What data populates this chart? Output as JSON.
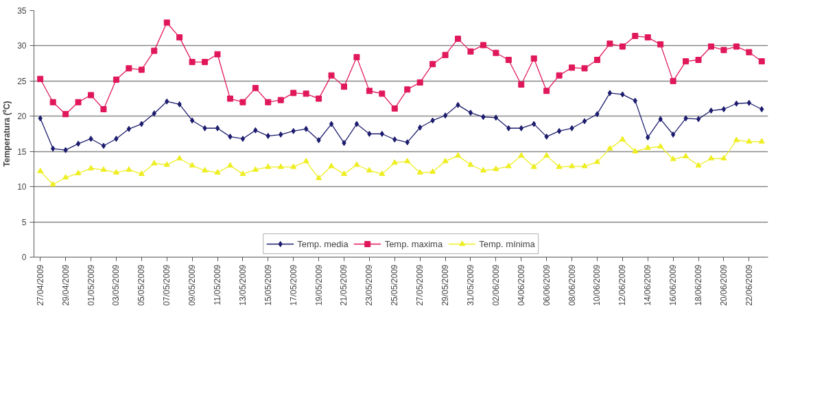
{
  "chart_data": {
    "type": "line",
    "ylabel": "Temperatura (ºC)",
    "categories": [
      "27/04/2009",
      null,
      "29/04/2009",
      null,
      "01/05/2009",
      null,
      "03/05/2009",
      null,
      "05/05/2009",
      null,
      "07/05/2009",
      null,
      "09/05/2009",
      null,
      "11/05/2009",
      null,
      "13/05/2009",
      null,
      "15/05/2009",
      null,
      "17/05/2009",
      null,
      "19/05/2009",
      null,
      "21/05/2009",
      null,
      "23/05/2009",
      null,
      "25/05/2009",
      null,
      "27/05/2009",
      null,
      "29/05/2009",
      null,
      "31/05/2009",
      null,
      "02/06/2009",
      null,
      "04/06/2009",
      null,
      "06/06/2009",
      null,
      "08/06/2009",
      null,
      "10/06/2009",
      null,
      "12/06/2009",
      null,
      "14/06/2009",
      null,
      "16/06/2009",
      null,
      "18/06/2009",
      null,
      "20/06/2009",
      null,
      "22/06/2009",
      null
    ],
    "ylim": [
      0,
      35
    ],
    "yticks": [
      0,
      5,
      10,
      15,
      20,
      25,
      30,
      35
    ],
    "grid": "y",
    "legend": "bottom",
    "line_style": "solid",
    "series": [
      {
        "name": "Temp. media",
        "color": "#1c1c6e",
        "marker": "diamond",
        "values": [
          19.7,
          15.4,
          15.2,
          16.1,
          16.8,
          15.8,
          16.8,
          18.2,
          18.9,
          20.4,
          22.1,
          21.7,
          19.4,
          18.3,
          18.3,
          17.1,
          16.8,
          18,
          17.2,
          17.4,
          17.9,
          18.2,
          16.6,
          18.9,
          16.2,
          18.9,
          17.5,
          17.5,
          16.7,
          16.3,
          18.4,
          19.4,
          20.1,
          21.6,
          20.5,
          19.9,
          19.8,
          18.3,
          18.3,
          18.9,
          17.1,
          17.9,
          18.3,
          19.3,
          20.3,
          23.3,
          23.1,
          22.2,
          17,
          19.6,
          17.4,
          19.7,
          19.6,
          20.8,
          21,
          21.8,
          21.9,
          21
        ]
      },
      {
        "name": "Temp. maxima",
        "color": "#e0185a",
        "marker": "square",
        "values": [
          25.3,
          22,
          20.3,
          22,
          23,
          21,
          25.2,
          26.8,
          26.6,
          29.3,
          33.3,
          31.2,
          27.7,
          27.7,
          28.8,
          22.5,
          22,
          24,
          22,
          22.3,
          23.3,
          23.2,
          22.5,
          25.8,
          24.2,
          28.4,
          23.6,
          23.2,
          21.1,
          23.8,
          24.8,
          27.4,
          28.7,
          31,
          29.2,
          30.1,
          29,
          28,
          24.5,
          28.2,
          23.6,
          25.8,
          26.9,
          26.8,
          28,
          30.3,
          29.9,
          31.4,
          31.2,
          30.2,
          25,
          27.8,
          28,
          29.9,
          29.4,
          29.9,
          29.1,
          27.8
        ]
      },
      {
        "name": "Temp. mínima",
        "color": "#eeee22",
        "marker": "triangle",
        "values": [
          12.2,
          10.3,
          11.3,
          11.9,
          12.6,
          12.4,
          12,
          12.4,
          11.8,
          13.3,
          13.1,
          14,
          13,
          12.3,
          12,
          13,
          11.8,
          12.4,
          12.8,
          12.8,
          12.8,
          13.6,
          11.2,
          12.9,
          11.8,
          13.1,
          12.3,
          11.8,
          13.4,
          13.6,
          12,
          12.1,
          13.6,
          14.4,
          13.1,
          12.3,
          12.5,
          12.9,
          14.4,
          12.8,
          14.4,
          12.8,
          12.9,
          12.9,
          13.5,
          15.4,
          16.7,
          15,
          15.5,
          15.7,
          13.9,
          14.3,
          13,
          14,
          14,
          16.6,
          16.4,
          16.4
        ]
      }
    ]
  }
}
